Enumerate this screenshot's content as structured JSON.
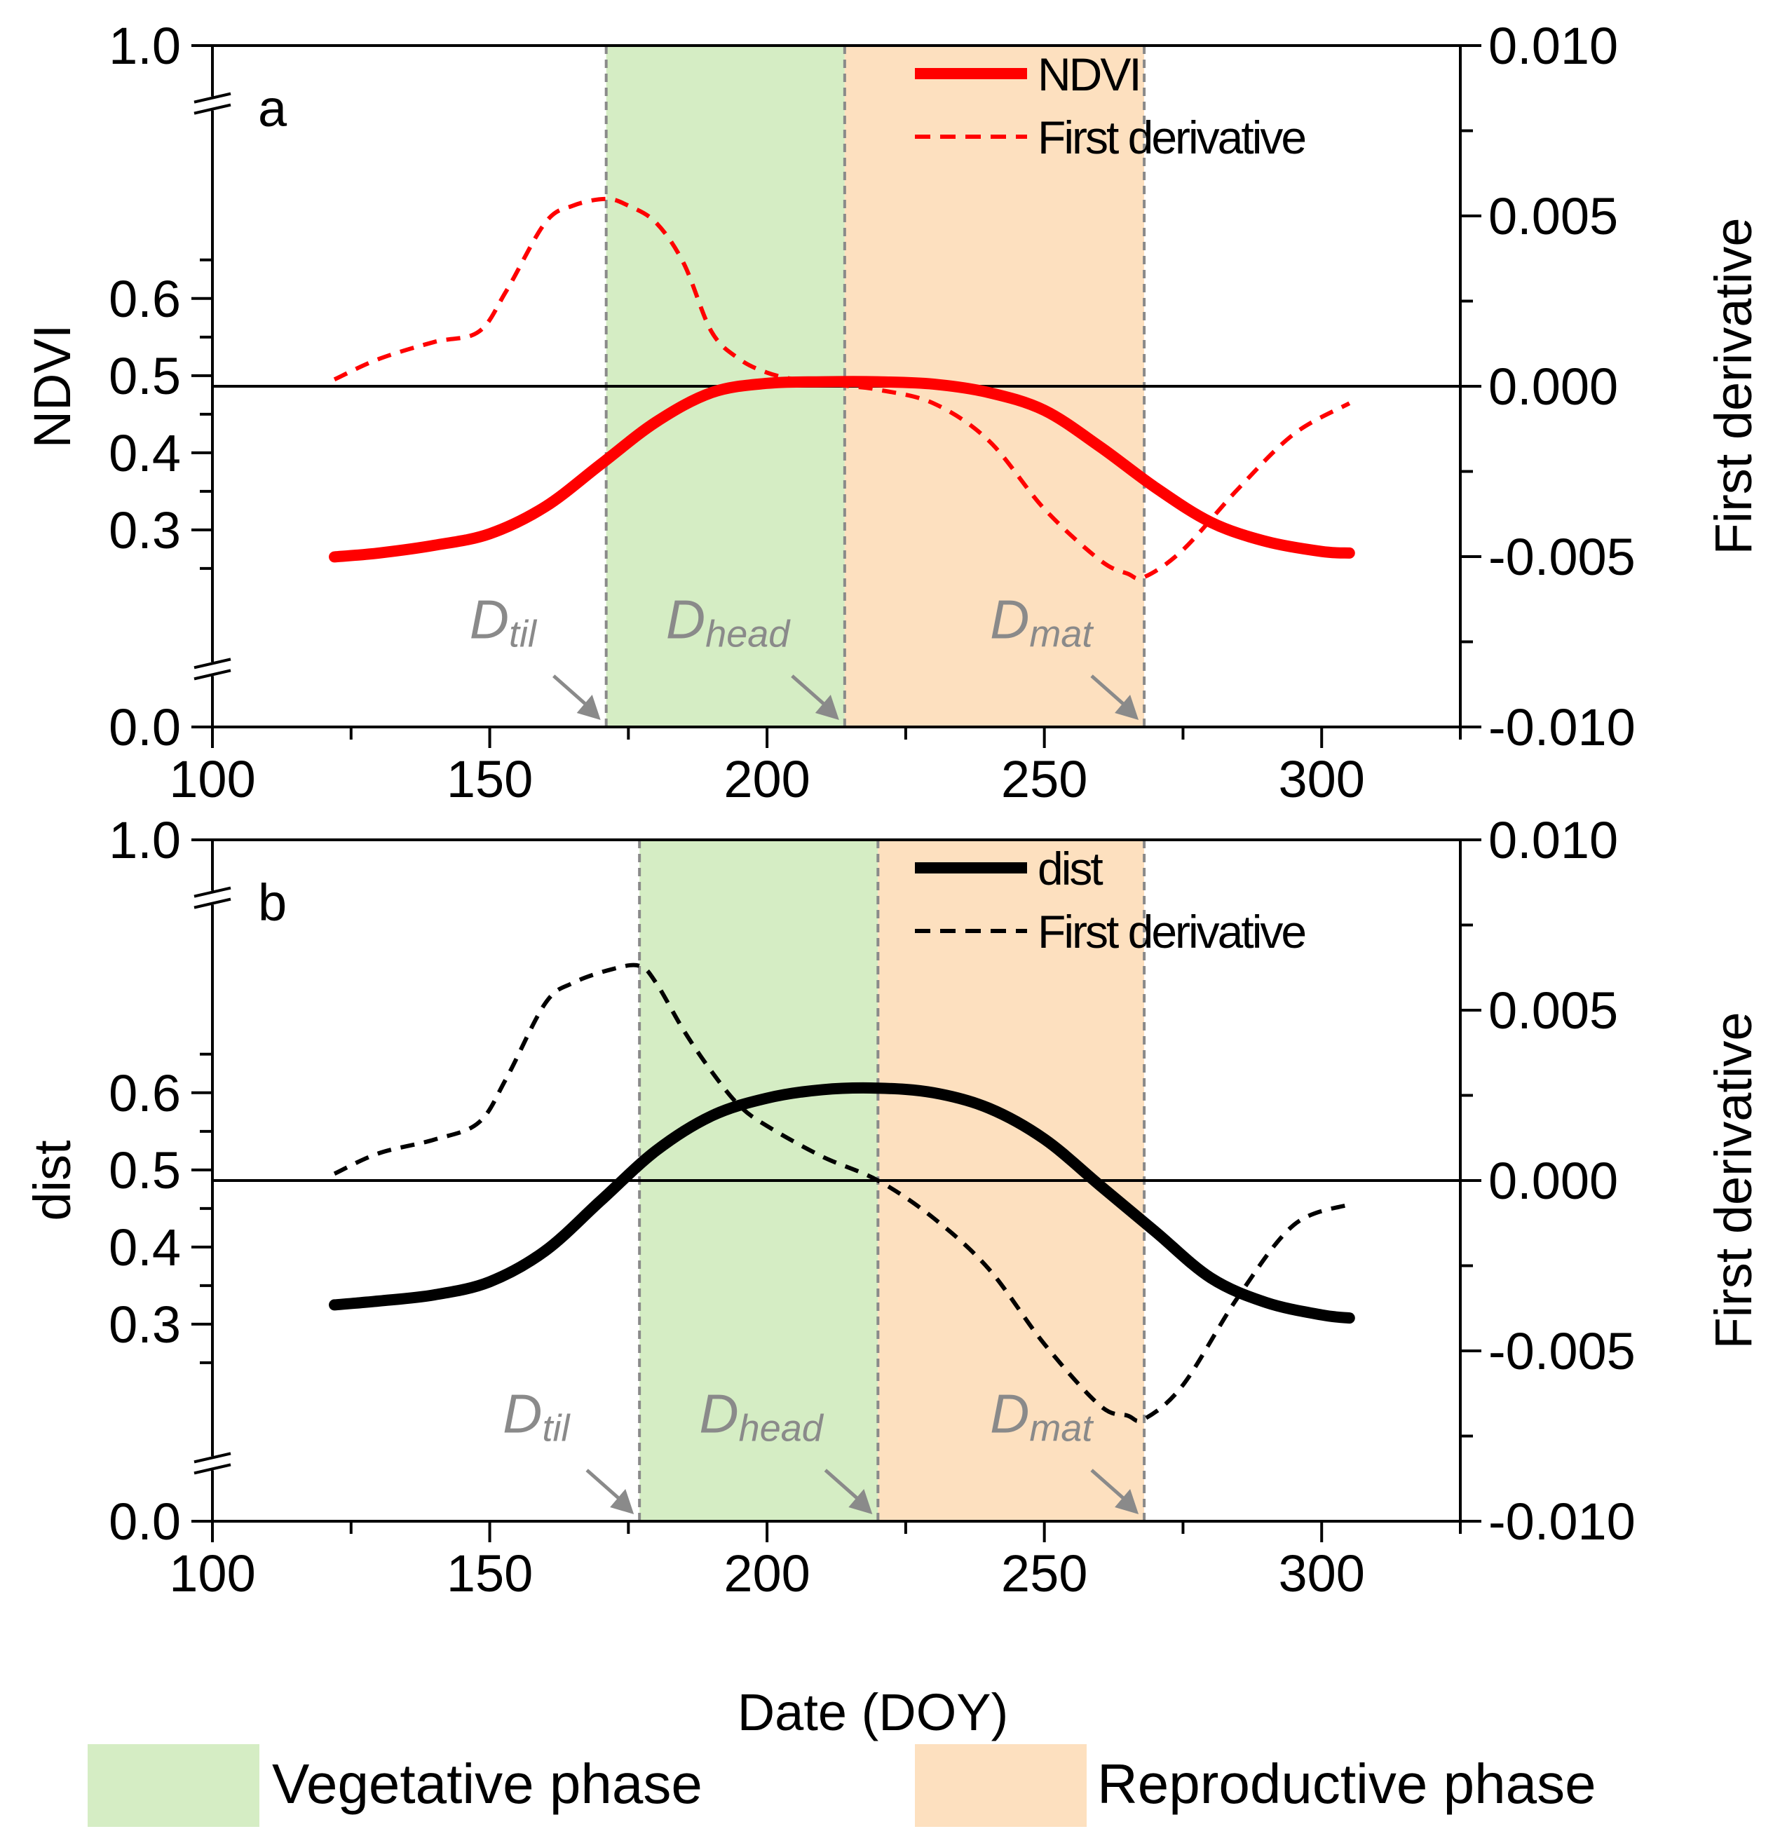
{
  "chart_data": [
    {
      "panel": "a",
      "type": "line",
      "x_label": "Date (DOY)",
      "x_ticks": [
        100,
        150,
        200,
        250,
        300
      ],
      "xlim": [
        100,
        325
      ],
      "y_left_label": "NDVI",
      "y_left_ticks": [
        "0.0",
        "0.3",
        "0.4",
        "0.5",
        "0.6",
        "1.0"
      ],
      "y_left_break_range": [
        0.2,
        0.7
      ],
      "y_right_label": "First derivative",
      "y_right_ticks": [
        "-0.010",
        "-0.005",
        "0.000",
        "0.005",
        "0.010"
      ],
      "y_right_lim": [
        -0.01,
        0.01
      ],
      "phase_lines": {
        "til": 171,
        "head": 214,
        "mat": 268
      },
      "phase_labels": {
        "til": {
          "main": "D",
          "sub": "til"
        },
        "head": {
          "main": "D",
          "sub": "head"
        },
        "mat": {
          "main": "D",
          "sub": "mat"
        }
      },
      "series": [
        {
          "name": "NDVI",
          "axis": "left",
          "style": "solid",
          "color": "#ff0000",
          "x": [
            122,
            130,
            140,
            150,
            160,
            170,
            180,
            190,
            200,
            210,
            220,
            230,
            240,
            250,
            260,
            270,
            280,
            290,
            300,
            305
          ],
          "y": [
            0.265,
            0.27,
            0.28,
            0.295,
            0.33,
            0.385,
            0.44,
            0.478,
            0.49,
            0.492,
            0.492,
            0.489,
            0.478,
            0.455,
            0.408,
            0.355,
            0.31,
            0.285,
            0.272,
            0.27
          ]
        },
        {
          "name": "First derivative",
          "axis": "right",
          "style": "dashed",
          "color": "#ff0000",
          "x": [
            122,
            130,
            140,
            148,
            153,
            160,
            165,
            171,
            175,
            180,
            185,
            190,
            195,
            200,
            205,
            210,
            215,
            220,
            230,
            240,
            250,
            260,
            265,
            268,
            275,
            285,
            295,
            305
          ],
          "y": [
            0.0002,
            0.0008,
            0.0013,
            0.0016,
            0.0028,
            0.0048,
            0.0053,
            0.0055,
            0.0053,
            0.0048,
            0.0036,
            0.0016,
            0.0008,
            0.0004,
            0.0002,
            0.0001,
            0.0,
            -0.0001,
            -0.0005,
            -0.0016,
            -0.0036,
            -0.0051,
            -0.0055,
            -0.0056,
            -0.0048,
            -0.003,
            -0.0014,
            -0.0005
          ]
        }
      ],
      "legend": [
        "NDVI",
        "First derivative"
      ]
    },
    {
      "panel": "b",
      "type": "line",
      "x_label": "Date (DOY)",
      "x_ticks": [
        100,
        150,
        200,
        250,
        300
      ],
      "xlim": [
        100,
        325
      ],
      "y_left_label": "dist",
      "y_left_ticks": [
        "0.0",
        "0.3",
        "0.4",
        "0.5",
        "0.6",
        "1.0"
      ],
      "y_left_break_range": [
        0.2,
        0.7
      ],
      "y_right_label": "First derivative",
      "y_right_ticks": [
        "-0.010",
        "-0.005",
        "0.000",
        "0.005",
        "0.010"
      ],
      "y_right_lim": [
        -0.01,
        0.01
      ],
      "phase_lines": {
        "til": 177,
        "head": 220,
        "mat": 268
      },
      "phase_labels": {
        "til": {
          "main": "D",
          "sub": "til"
        },
        "head": {
          "main": "D",
          "sub": "head"
        },
        "mat": {
          "main": "D",
          "sub": "mat"
        }
      },
      "series": [
        {
          "name": "dist",
          "axis": "left",
          "style": "solid",
          "color": "#000000",
          "x": [
            122,
            130,
            140,
            150,
            160,
            170,
            180,
            190,
            200,
            210,
            220,
            230,
            240,
            250,
            260,
            270,
            280,
            290,
            300,
            305
          ],
          "y": [
            0.325,
            0.33,
            0.338,
            0.355,
            0.395,
            0.46,
            0.525,
            0.57,
            0.593,
            0.604,
            0.606,
            0.6,
            0.58,
            0.54,
            0.48,
            0.42,
            0.36,
            0.328,
            0.312,
            0.308
          ]
        },
        {
          "name": "First derivative",
          "axis": "right",
          "style": "dashed",
          "color": "#000000",
          "x": [
            122,
            130,
            140,
            148,
            153,
            160,
            165,
            172,
            177,
            180,
            185,
            190,
            195,
            200,
            210,
            220,
            230,
            240,
            250,
            260,
            265,
            268,
            275,
            285,
            295,
            305
          ],
          "y": [
            0.0002,
            0.0008,
            0.0012,
            0.0017,
            0.003,
            0.0052,
            0.0058,
            0.0062,
            0.0063,
            0.0058,
            0.0044,
            0.0032,
            0.0022,
            0.0016,
            0.0007,
            0.0,
            -0.0011,
            -0.0026,
            -0.0048,
            -0.0066,
            -0.0069,
            -0.007,
            -0.006,
            -0.0034,
            -0.0013,
            -0.0007
          ]
        }
      ],
      "legend": [
        "dist",
        "First derivative"
      ]
    }
  ],
  "panel_letters": {
    "a": "a",
    "b": "b"
  },
  "phase_legend": {
    "vegetative": {
      "label": "Vegetative phase",
      "color": "#d5edc4"
    },
    "reproductive": {
      "label": "Reproductive phase",
      "color": "#fde0bf"
    }
  },
  "colors": {
    "grid_guide": "#8a8a8a",
    "red": "#ff0000",
    "black": "#000000"
  }
}
